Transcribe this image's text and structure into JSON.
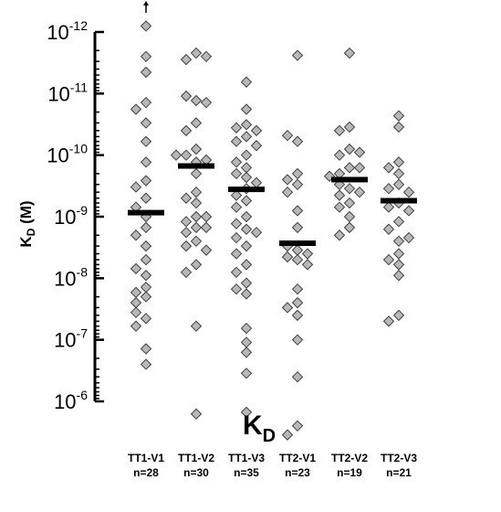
{
  "chart_data": {
    "type": "scatter",
    "title": "K",
    "title_sub": "D",
    "ylabel": "K",
    "ylabel_sub": "D",
    "ylabel_unit": " (M)",
    "y_scale": "log",
    "y_inverted": true,
    "ylim": [
      1e-12,
      1e-06
    ],
    "yticks": [
      {
        "base": "10",
        "exp": "-12"
      },
      {
        "base": "10",
        "exp": "-11"
      },
      {
        "base": "10",
        "exp": "-10"
      },
      {
        "base": "10",
        "exp": "-9"
      },
      {
        "base": "10",
        "exp": "-8"
      },
      {
        "base": "10",
        "exp": "-7"
      },
      {
        "base": "10",
        "exp": "-6"
      }
    ],
    "marker_fill": "#b8b8b8",
    "marker_stroke": "#404040",
    "median_color": "#000000",
    "arrow_note": "TT1-V1 includes a value off-scale above 1e-12",
    "categories": [
      {
        "name": "TT1-V1",
        "n": "n=28",
        "median": 8.6e-10,
        "values": [
          8e-13,
          2.5e-12,
          4.5e-12,
          1.4e-11,
          3e-11,
          6e-11,
          1.8e-11,
          1.3e-10,
          2.6e-10,
          3.3e-10,
          5e-10,
          7e-10,
          1e-09,
          1.5e-09,
          2e-09,
          3e-09,
          5e-09,
          7e-09,
          9e-09,
          1.4e-08,
          1.7e-08,
          2e-08,
          2.5e-08,
          4.5e-08,
          3.6e-08,
          2.5e-07,
          6e-08,
          1.4e-07
        ]
      },
      {
        "name": "TT1-V2",
        "n": "n=30",
        "median": 1.5e-10,
        "values": [
          2.2e-12,
          2.8e-12,
          2.5e-12,
          1.3e-11,
          1.1e-11,
          1.4e-11,
          3e-11,
          4e-11,
          8e-11,
          1e-10,
          1.3e-10,
          2e-10,
          1.2e-10,
          1e-10,
          4e-10,
          5e-10,
          6e-10,
          1e-09,
          1.2e-09,
          1.5e-09,
          1.8e-09,
          2.5e-09,
          3e-09,
          3.5e-09,
          6e-09,
          8e-09,
          1e-09,
          6e-08,
          1.5e-09,
          1.6e-06
        ]
      },
      {
        "name": "TT1-V3",
        "n": "n=35",
        "median": 3.6e-10,
        "values": [
          6.5e-12,
          1.8e-11,
          3.2e-11,
          3.6e-11,
          4e-11,
          5e-11,
          6e-11,
          7e-11,
          1e-10,
          1.3e-10,
          1.6e-10,
          2e-10,
          2.3e-10,
          2.8e-10,
          3.5e-10,
          4.5e-10,
          5.5e-10,
          7e-10,
          1e-09,
          1.3e-09,
          1.6e-09,
          1.8e-09,
          2.2e-09,
          3e-09,
          4e-09,
          6e-09,
          8e-09,
          1.2e-08,
          1.5e-08,
          1.8e-08,
          1.1e-07,
          1.6e-07,
          6.5e-08,
          1.5e-06,
          3.5e-07
        ]
      },
      {
        "name": "TT2-V1",
        "n": "n=23",
        "median": 2.7e-09,
        "values": [
          2.4e-12,
          6e-11,
          4.8e-11,
          3e-10,
          2.5e-10,
          2e-10,
          4e-10,
          8e-10,
          1.5e-09,
          3.5e-09,
          4.5e-09,
          5e-09,
          3e-09,
          4e-09,
          6e-09,
          1.5e-08,
          2.5e-08,
          3e-08,
          4e-08,
          4e-07,
          1e-07,
          2.5e-06,
          3.5e-06
        ]
      },
      {
        "name": "TT2-V2",
        "n": "n=19",
        "median": 2.5e-10,
        "values": [
          2.2e-12,
          3.5e-11,
          4e-11,
          8e-11,
          1e-10,
          9e-11,
          1.6e-10,
          2e-10,
          3.5e-10,
          3e-10,
          4e-10,
          1.6e-10,
          2.2e-10,
          4.5e-10,
          6e-10,
          7e-10,
          1e-09,
          1.5e-09,
          2e-09
        ]
      },
      {
        "name": "TT2-V3",
        "n": "n=21",
        "median": 5.5e-10,
        "values": [
          2.3e-11,
          3.5e-11,
          1.3e-10,
          1.6e-10,
          2e-10,
          3e-10,
          3.5e-10,
          4e-10,
          6e-10,
          7e-10,
          8e-10,
          1.2e-09,
          1.6e-09,
          2.5e-09,
          4e-09,
          5e-09,
          6e-09,
          2.2e-09,
          9e-09,
          4e-08,
          5e-08
        ]
      }
    ]
  }
}
